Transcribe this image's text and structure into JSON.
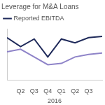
{
  "chart_data": {
    "type": "line",
    "title": "Leverage for M&A Loans",
    "xlabel": "2016",
    "categories": [
      null,
      "Q2",
      "Q3",
      "Q4",
      "Q1",
      "Q2",
      "Q3",
      null
    ],
    "series": [
      {
        "name": "Reported EBITDA",
        "color": "#1f2a5a",
        "values": [
          6.3,
          5.6,
          6.2,
          4.8,
          6.2,
          5.9,
          6.3,
          6.4
        ]
      },
      {
        "color": "#8e83c8",
        "values": [
          5.2,
          5.4,
          4.8,
          4.2,
          4.3,
          4.8,
          5.0,
          5.1
        ]
      }
    ],
    "ylim": [
      3,
      7
    ],
    "grid": false,
    "legend": "top",
    "tick_labels": "x"
  }
}
